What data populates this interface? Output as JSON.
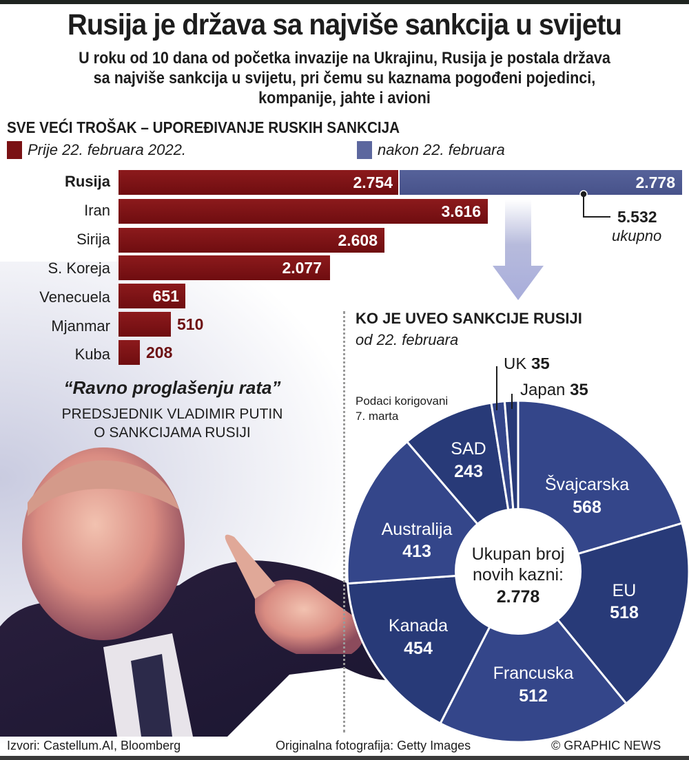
{
  "title": "Rusija je država sa najviše sankcija u svijetu",
  "subtitle": "U roku od 10 dana od početka invazije na Ukrajinu, Rusija je postala država sa najviše sankcija u svijetu, pri čemu su kaznama pogođeni pojedinci, kompanije, jahte i avioni",
  "bar_section": {
    "title": "SVE VEĆI TROŠAK – UPOREĐIVANJE RUSKIH SANKCIJA",
    "legend_before": "Prije 22. februara 2022.",
    "legend_after": "nakon 22. februara",
    "rows": [
      {
        "label": "Rusija",
        "before": "2.754",
        "after": "2.778"
      },
      {
        "label": "Iran",
        "before": "3.616"
      },
      {
        "label": "Sirija",
        "before": "2.608"
      },
      {
        "label": "S. Koreja",
        "before": "2.077"
      },
      {
        "label": "Venecuela",
        "before": "651"
      },
      {
        "label": "Mjanmar",
        "before": "510"
      },
      {
        "label": "Kuba",
        "before": "208"
      }
    ],
    "total_value": "5.532",
    "total_label": "ukupno"
  },
  "quote": {
    "text": "“Ravno proglašenju rata”",
    "attribution_line1": "PREDSJEDNIK VLADIMIR PUTIN",
    "attribution_line2": "O SANKCIJAMA RUSIJI"
  },
  "pie_section": {
    "title": "KO JE UVEO SANKCIJE RUSIJI",
    "subtitle": "od 22. februara",
    "note_line1": "Podaci korigovani",
    "note_line2": "7. marta",
    "center_line1": "Ukupan broj",
    "center_line2": "novih kazni:",
    "center_value": "2.778",
    "slices": [
      {
        "label": "Švajcarska",
        "value": "568"
      },
      {
        "label": "EU",
        "value": "518"
      },
      {
        "label": "Francuska",
        "value": "512"
      },
      {
        "label": "Kanada",
        "value": "454"
      },
      {
        "label": "Australija",
        "value": "413"
      },
      {
        "label": "SAD",
        "value": "243"
      },
      {
        "label": "UK",
        "value": "35"
      },
      {
        "label": "Japan",
        "value": "35"
      }
    ]
  },
  "footer": {
    "sources": "Izvori: Castellum.AI, Bloomberg",
    "photo": "Originalna fotografija: Getty Images",
    "credit": "© GRAPHIC NEWS"
  },
  "colors": {
    "before": "#7a1114",
    "after": "#4d5992",
    "pie_light": "#34468a",
    "pie_dark": "#283a78"
  },
  "chart_data": [
    {
      "type": "bar",
      "title": "SVE VEĆI TROŠAK – UPOREĐIVANJE RUSKIH SANKCIJA",
      "orientation": "horizontal",
      "stacked": true,
      "categories": [
        "Rusija",
        "Iran",
        "Sirija",
        "S. Koreja",
        "Venecuela",
        "Mjanmar",
        "Kuba"
      ],
      "series": [
        {
          "name": "Prije 22. februara 2022.",
          "values": [
            2754,
            3616,
            2608,
            2077,
            651,
            510,
            208
          ]
        },
        {
          "name": "nakon 22. februara",
          "values": [
            2778,
            0,
            0,
            0,
            0,
            0,
            0
          ]
        }
      ],
      "annotations": [
        "5.532 ukupno (Rusija)"
      ],
      "legend_position": "top"
    },
    {
      "type": "pie",
      "title": "KO JE UVEO SANKCIJE RUSIJI",
      "subtitle": "od 22. februara",
      "donut": true,
      "categories": [
        "Švajcarska",
        "EU",
        "Francuska",
        "Kanada",
        "Australija",
        "SAD",
        "UK",
        "Japan"
      ],
      "values": [
        568,
        518,
        512,
        454,
        413,
        243,
        35,
        35
      ],
      "center_text": "Ukupan broj novih kazni: 2.778",
      "total": 2778,
      "annotations": [
        "Podaci korigovani 7. marta"
      ]
    }
  ]
}
